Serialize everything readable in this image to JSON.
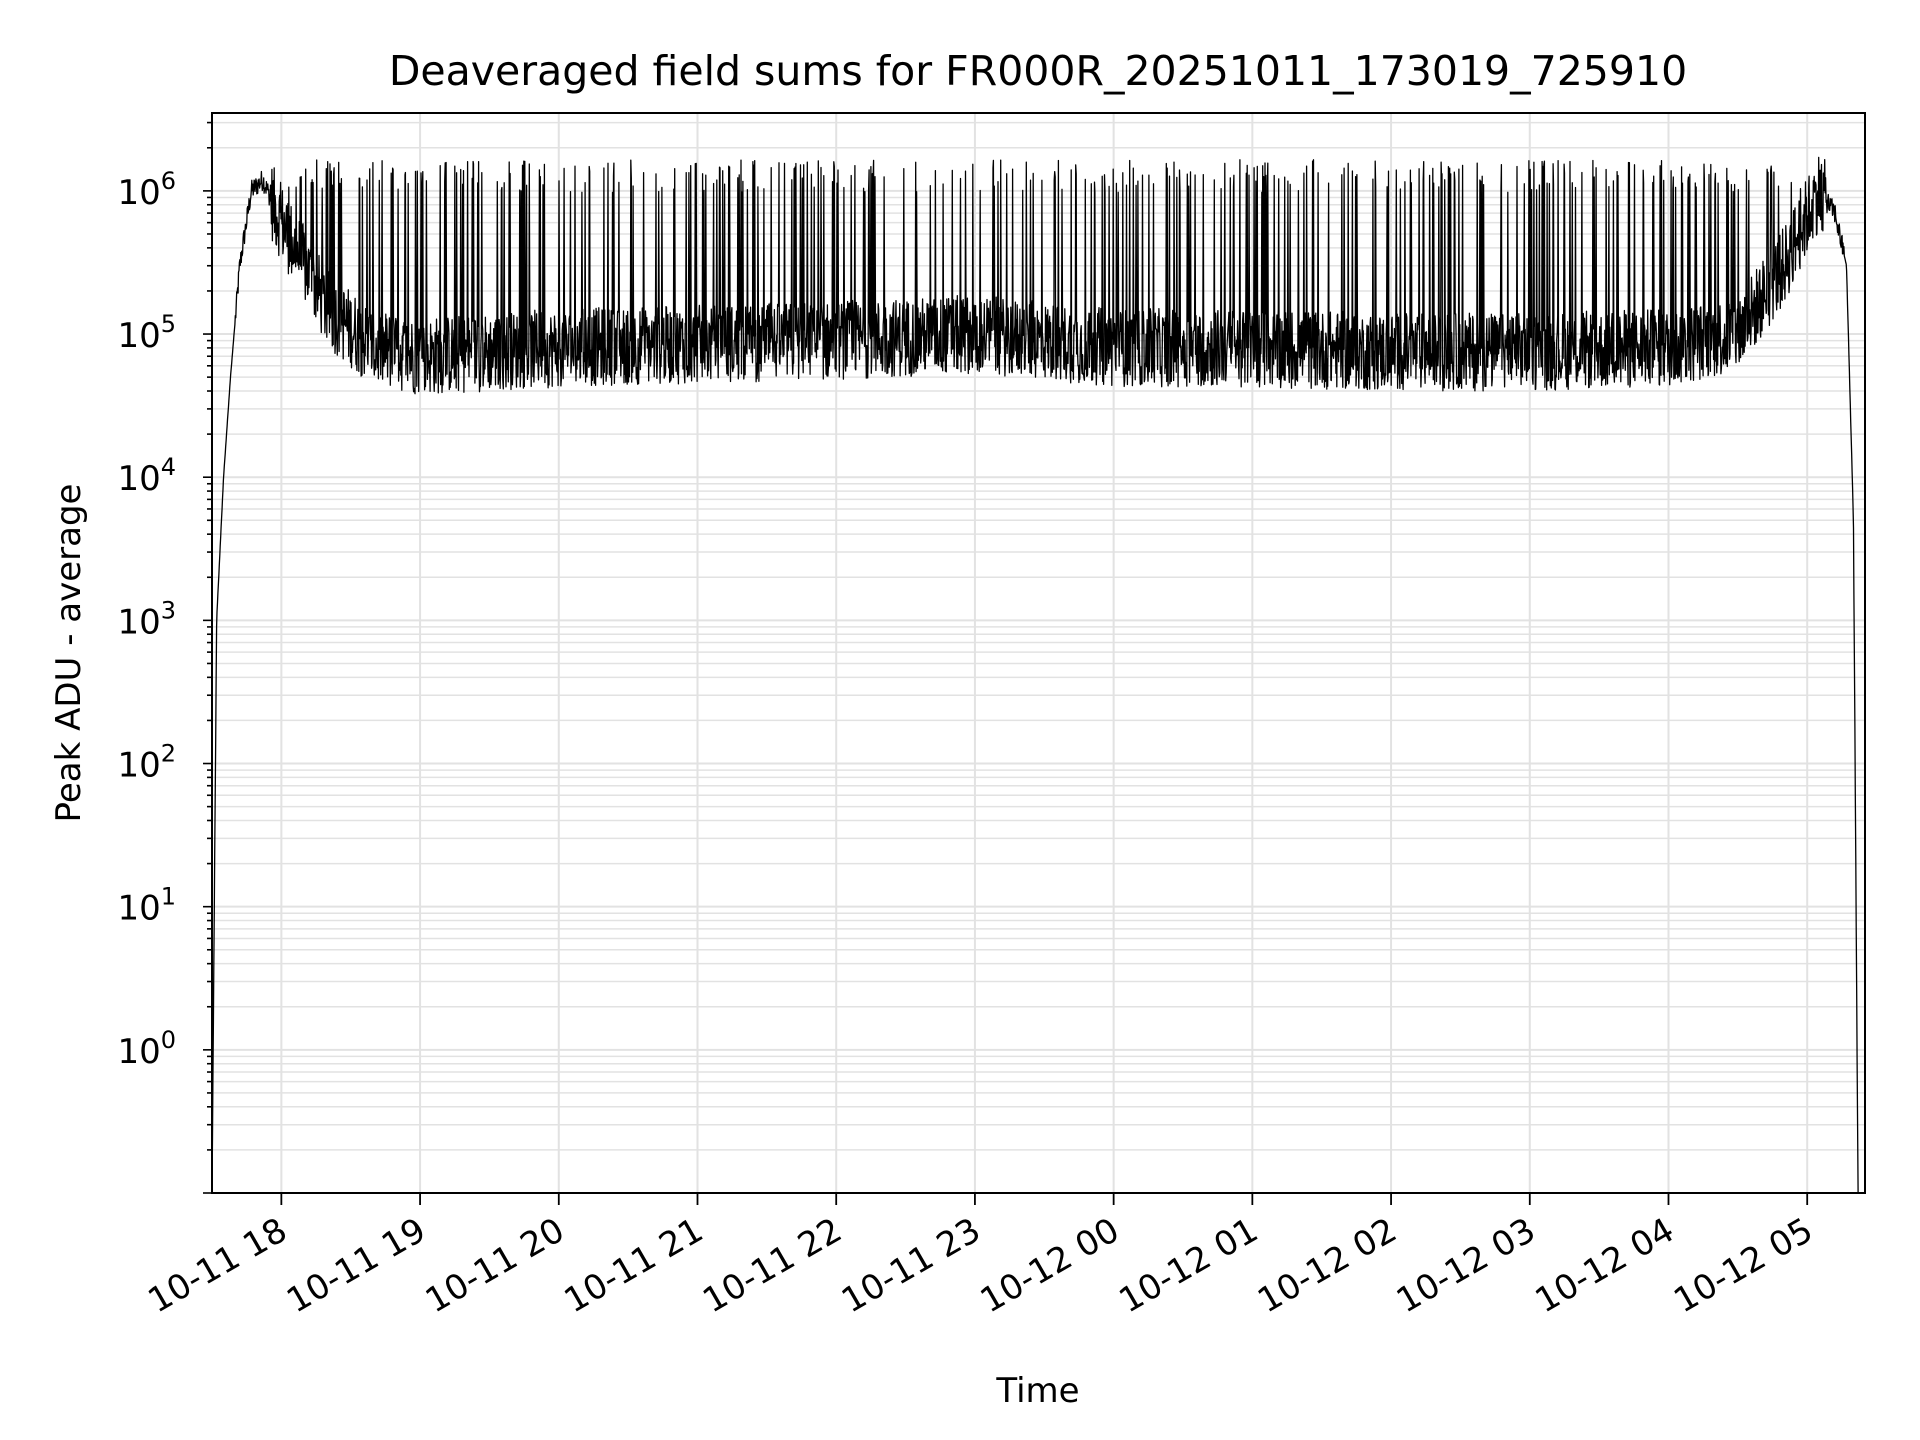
{
  "chart_data": {
    "type": "line",
    "title": "Deaveraged field sums for FR000R_20251011_173019_725910",
    "xlabel": "Time",
    "ylabel": "Peak ADU - average",
    "y_scale": "log",
    "grid": true,
    "x_ticks": [
      "10-11 18",
      "10-11 19",
      "10-11 20",
      "10-11 21",
      "10-11 22",
      "10-11 23",
      "10-12 00",
      "10-12 01",
      "10-12 02",
      "10-12 03",
      "10-12 04",
      "10-12 05"
    ],
    "x_tick_rotation_deg": 30,
    "y_tick_exponents": [
      0,
      1,
      2,
      3,
      4,
      5,
      6
    ],
    "y_tick_base": "10",
    "xlim": [
      "2025-10-11 17:30",
      "2025-10-12 05:25"
    ],
    "ylim": [
      0.1,
      3500000
    ],
    "series": [
      {
        "color": "#000000",
        "x": [
          "2025-10-11 17:30",
          "2025-10-11 17:32",
          "2025-10-11 17:35",
          "2025-10-11 17:38",
          "2025-10-11 17:42",
          "2025-10-11 17:47",
          "2025-10-11 17:52",
          "2025-10-11 17:58",
          "2025-10-11 18:06",
          "2025-10-11 18:20",
          "2025-10-11 18:40",
          "2025-10-11 19:00",
          "2025-10-11 19:30",
          "2025-10-11 20:00",
          "2025-10-11 21:00",
          "2025-10-11 22:00",
          "2025-10-11 23:00",
          "2025-10-12 00:00",
          "2025-10-12 01:00",
          "2025-10-12 02:00",
          "2025-10-12 03:00",
          "2025-10-12 04:00",
          "2025-10-12 04:30",
          "2025-10-12 04:50",
          "2025-10-12 05:05",
          "2025-10-12 05:12",
          "2025-10-12 05:17",
          "2025-10-12 05:20",
          "2025-10-12 05:22"
        ],
        "y": [
          0.1,
          1000,
          10000,
          50000,
          300000,
          1000000,
          1200000,
          700000,
          400000,
          150000,
          80000,
          70000,
          75000,
          80000,
          85000,
          90000,
          100000,
          80000,
          80000,
          75000,
          75000,
          80000,
          100000,
          300000,
          1000000,
          700000,
          300000,
          5000,
          0.1
        ],
        "spikes_peak_approx": 1500000
      }
    ]
  }
}
